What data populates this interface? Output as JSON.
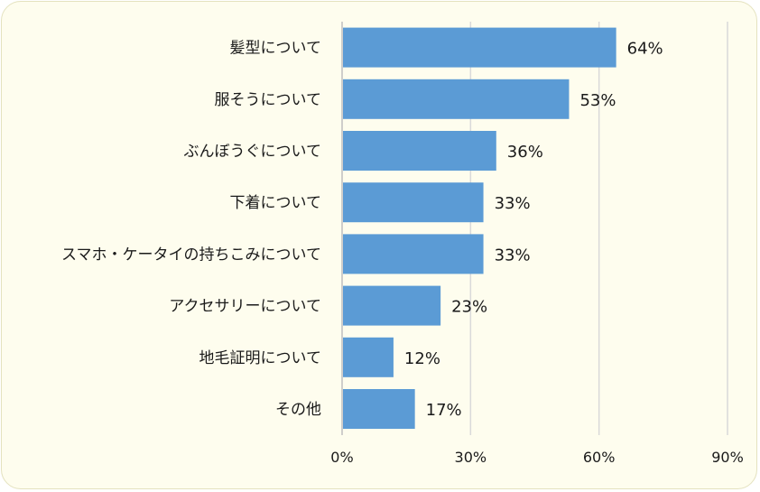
{
  "chart_data": {
    "type": "bar",
    "orientation": "horizontal",
    "categories": [
      "髪型について",
      "服そうについて",
      "ぶんぼうぐについて",
      "下着について",
      "スマホ・ケータイの持ちこみについて",
      "アクセサリーについて",
      "地毛証明について",
      "その他"
    ],
    "values": [
      64,
      53,
      36,
      33,
      33,
      23,
      12,
      17
    ],
    "value_labels": [
      "64%",
      "53%",
      "36%",
      "33%",
      "33%",
      "23%",
      "12%",
      "17%"
    ],
    "x_ticks": [
      0,
      30,
      60,
      90
    ],
    "x_tick_labels": [
      "0%",
      "30%",
      "60%",
      "90%"
    ],
    "xlim": [
      0,
      90
    ],
    "grid": true,
    "title": "",
    "xlabel": "",
    "ylabel": "",
    "colors": {
      "bar": "#5b9bd5",
      "gridline": "#d9d9d9",
      "background": "#fefdee"
    }
  }
}
